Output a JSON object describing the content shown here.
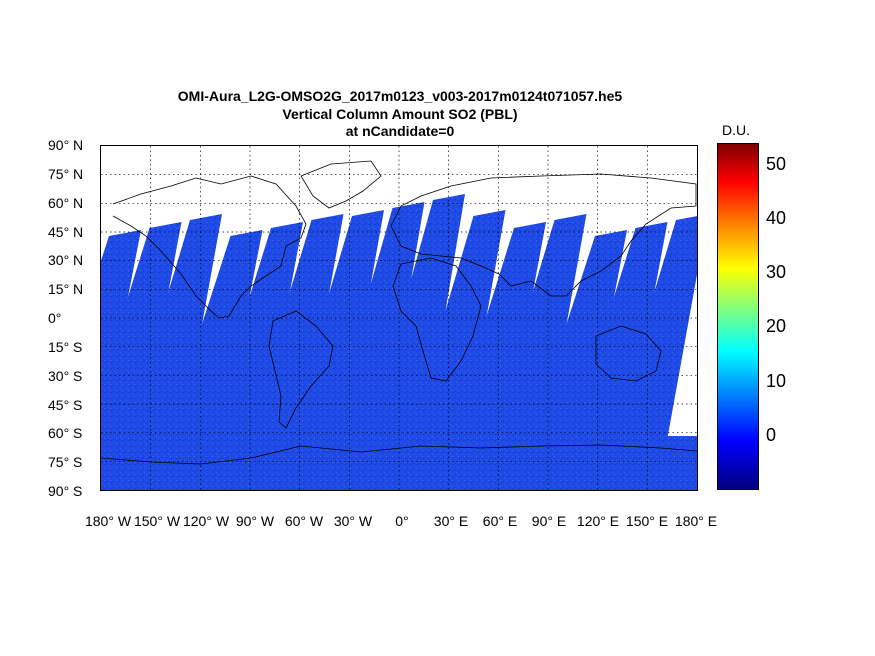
{
  "title": {
    "line1": "OMI-Aura_L2G-OMSO2G_2017m0123_v003-2017m0124t071057.he5",
    "line2": "Vertical Column Amount SO2 (PBL)",
    "line3": "at nCandidate=0"
  },
  "lat_labels": [
    "90° N",
    "75° N",
    "60° N",
    "45° N",
    "30° N",
    "15° N",
    "0°",
    "15° S",
    "30° S",
    "45° S",
    "60° S",
    "75° S",
    "90° S"
  ],
  "lon_labels": [
    "180° W",
    "150° W",
    "120° W",
    "90° W",
    "60° W",
    "30° W",
    "0°",
    "30° E",
    "60° E",
    "90° E",
    "120° E",
    "150° E",
    "180° E"
  ],
  "colorbar": {
    "unit": "D.U.",
    "ticks": [
      "50",
      "40",
      "30",
      "20",
      "10",
      "0"
    ],
    "tick_values": [
      50,
      40,
      30,
      20,
      10,
      0
    ],
    "range": [
      -10,
      54
    ],
    "colormap": "jet"
  },
  "colors": {
    "swath": "#1f4ae6",
    "swath_dark": "#1635c8",
    "coastline": "#000000",
    "grid": "#000000"
  }
}
